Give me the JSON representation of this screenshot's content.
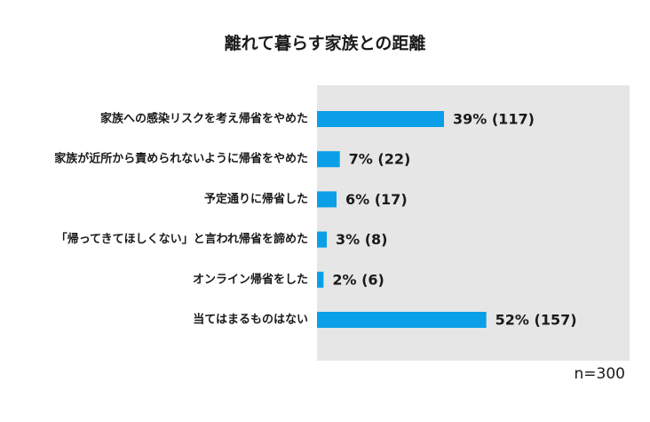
{
  "chart_data": {
    "type": "bar",
    "orientation": "horizontal",
    "title": "離れて暮らす家族との距離",
    "categories": [
      "家族への感染リスクを考え帰省をやめた",
      "家族が近所から責められないように帰省をやめた",
      "予定通りに帰省した",
      "「帰ってきてほしくない」と言われ帰省を諦めた",
      "オンライン帰省をした",
      "当てはまるものはない"
    ],
    "values": [
      39,
      7,
      6,
      3,
      2,
      52
    ],
    "data_labels": [
      "39% (117)",
      "7% (22)",
      "6% (17)",
      "3% (8)",
      "2% (6)",
      "52% (157)"
    ],
    "unit": "%",
    "xlim": [
      0,
      100
    ],
    "grid": false,
    "legend": "none",
    "note": "n=300",
    "colors": {
      "bar": "#0a9fe6",
      "plot_background": "#e6e6e6",
      "text": "#1a1a1a"
    }
  }
}
